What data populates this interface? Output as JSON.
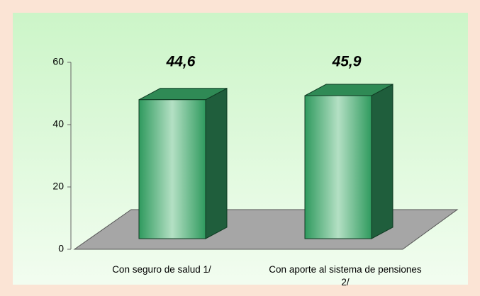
{
  "chart_data": {
    "type": "bar3d",
    "categories": [
      "Con seguro de salud 1/",
      "Con aporte al sistema de pensiones 2/"
    ],
    "values": [
      44.6,
      45.9
    ],
    "value_labels": [
      "44,6",
      "45,9"
    ],
    "color": "#2e8b57",
    "ylim": [
      0,
      60
    ],
    "yticks": [
      0,
      20,
      40,
      60
    ],
    "grid": false
  }
}
